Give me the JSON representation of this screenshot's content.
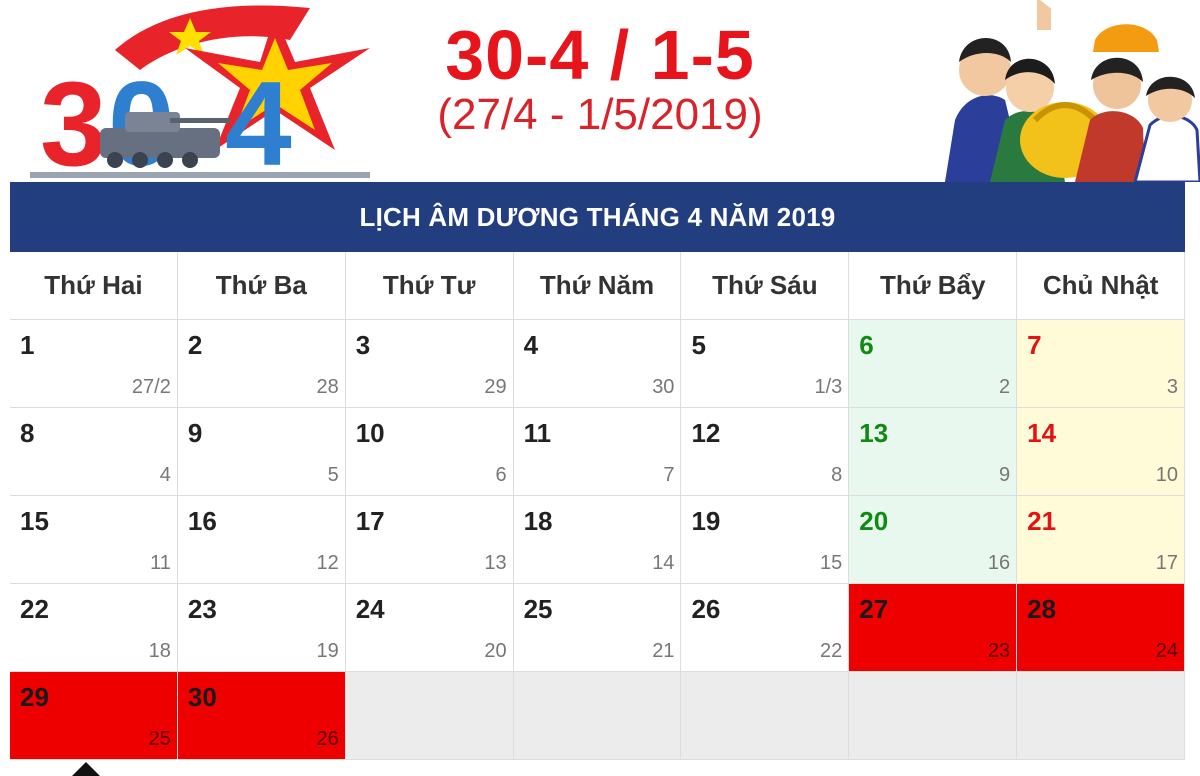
{
  "header": {
    "logo_text": "30-4",
    "headline": "30-4 / 1-5",
    "subline": "(27/4 - 1/5/2019)"
  },
  "calendar": {
    "title": "LỊCH ÂM DƯƠNG THÁNG 4 NĂM 2019",
    "weekdays": [
      "Thứ Hai",
      "Thứ Ba",
      "Thứ Tư",
      "Thứ Năm",
      "Thứ Sáu",
      "Thứ Bẩy",
      "Chủ Nhật"
    ],
    "weeks": [
      [
        {
          "solar": "1",
          "lunar": "27/2",
          "type": "normal"
        },
        {
          "solar": "2",
          "lunar": "28",
          "type": "normal"
        },
        {
          "solar": "3",
          "lunar": "29",
          "type": "normal"
        },
        {
          "solar": "4",
          "lunar": "30",
          "type": "normal"
        },
        {
          "solar": "5",
          "lunar": "1/3",
          "type": "normal"
        },
        {
          "solar": "6",
          "lunar": "2",
          "type": "sat"
        },
        {
          "solar": "7",
          "lunar": "3",
          "type": "sun"
        }
      ],
      [
        {
          "solar": "8",
          "lunar": "4",
          "type": "normal"
        },
        {
          "solar": "9",
          "lunar": "5",
          "type": "normal"
        },
        {
          "solar": "10",
          "lunar": "6",
          "type": "normal"
        },
        {
          "solar": "11",
          "lunar": "7",
          "type": "normal"
        },
        {
          "solar": "12",
          "lunar": "8",
          "type": "normal"
        },
        {
          "solar": "13",
          "lunar": "9",
          "type": "sat"
        },
        {
          "solar": "14",
          "lunar": "10",
          "type": "sun"
        }
      ],
      [
        {
          "solar": "15",
          "lunar": "11",
          "type": "normal"
        },
        {
          "solar": "16",
          "lunar": "12",
          "type": "normal"
        },
        {
          "solar": "17",
          "lunar": "13",
          "type": "normal"
        },
        {
          "solar": "18",
          "lunar": "14",
          "type": "normal"
        },
        {
          "solar": "19",
          "lunar": "15",
          "type": "normal"
        },
        {
          "solar": "20",
          "lunar": "16",
          "type": "sat"
        },
        {
          "solar": "21",
          "lunar": "17",
          "type": "sun"
        }
      ],
      [
        {
          "solar": "22",
          "lunar": "18",
          "type": "normal"
        },
        {
          "solar": "23",
          "lunar": "19",
          "type": "normal"
        },
        {
          "solar": "24",
          "lunar": "20",
          "type": "normal"
        },
        {
          "solar": "25",
          "lunar": "21",
          "type": "normal"
        },
        {
          "solar": "26",
          "lunar": "22",
          "type": "normal"
        },
        {
          "solar": "27",
          "lunar": "23",
          "type": "holiday"
        },
        {
          "solar": "28",
          "lunar": "24",
          "type": "holiday"
        }
      ],
      [
        {
          "solar": "29",
          "lunar": "25",
          "type": "holiday"
        },
        {
          "solar": "30",
          "lunar": "26",
          "type": "holiday"
        },
        {
          "solar": "",
          "lunar": "",
          "type": "empty"
        },
        {
          "solar": "",
          "lunar": "",
          "type": "empty"
        },
        {
          "solar": "",
          "lunar": "",
          "type": "empty"
        },
        {
          "solar": "",
          "lunar": "",
          "type": "empty"
        },
        {
          "solar": "",
          "lunar": "",
          "type": "empty"
        }
      ]
    ]
  },
  "colors": {
    "title_bar": "#233e7e",
    "headline_red": "#e8141c",
    "holiday_red": "#ee0000",
    "saturday_green": "#118a11",
    "sunday_red": "#e51212",
    "saturday_bg": "#e8f8ee",
    "sunday_bg": "#fffbd8",
    "logo_blue": "#2f7fd0"
  }
}
